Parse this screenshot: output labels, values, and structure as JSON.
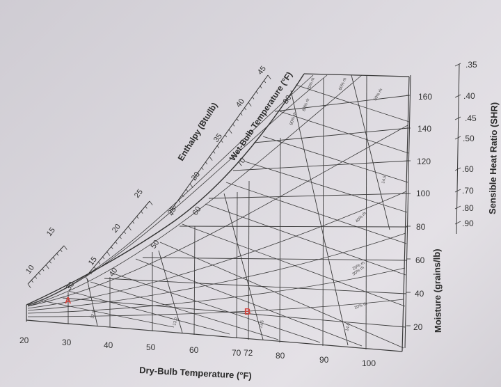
{
  "chart": {
    "x_axis_title": "Dry-Bulb Temperature (°F)",
    "x_ticks": [
      "20",
      "30",
      "40",
      "50",
      "60",
      "70",
      "72",
      "80",
      "90",
      "100"
    ],
    "moisture_axis_title": "Moisture (grains/lb)",
    "moisture_ticks": [
      "20",
      "40",
      "60",
      "80",
      "100",
      "120",
      "140",
      "160"
    ],
    "shr_axis_title": "Sensible Heat Ratio (SHR)",
    "shr_ticks": [
      ".35",
      ".40",
      ".45",
      ".50",
      ".60",
      ".70",
      ".80",
      ".90"
    ],
    "enthalpy_title": "Enthalpy (Btu/lb)",
    "enthalpy_ticks": [
      "10",
      "15",
      "15",
      "20",
      "25",
      "25",
      "30",
      "35",
      "40",
      "45"
    ],
    "wetbulb_title": "Wet-Bulb Temperature (°F)",
    "wetbulb_labels": [
      "30",
      "40",
      "50",
      "60",
      "70",
      "80"
    ],
    "rh_labels": [
      "10% rh",
      "20% rh",
      "30% rh",
      "40% rh",
      "50% rh",
      "60% rh",
      "70% rh",
      "80% rh",
      "90% rh"
    ],
    "volume_labels": [
      "12.5",
      "13.0",
      "13.5",
      "14.0",
      "14.5"
    ],
    "point_a": "A",
    "point_b": "B"
  },
  "colors": {
    "line": "#3a3a3a",
    "marker": "#d4453f"
  }
}
